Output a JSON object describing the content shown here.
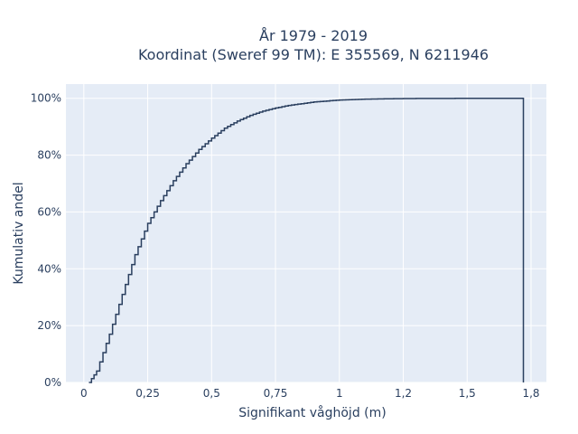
{
  "chart_data": {
    "type": "line",
    "title_lines": [
      "År 1979 - 2019",
      "Koordinat (Sweref 99 TM): E 355569, N 6211946"
    ],
    "xlabel": "Signifikant våghöjd (m)",
    "ylabel": "Kumulativ andel",
    "xlim": [
      -0.07,
      1.81
    ],
    "ylim": [
      0,
      1.05
    ],
    "x_ticks": [
      {
        "value": 0,
        "label": "0"
      },
      {
        "value": 0.25,
        "label": "0,25"
      },
      {
        "value": 0.5,
        "label": "0,5"
      },
      {
        "value": 0.75,
        "label": "0,75"
      },
      {
        "value": 1,
        "label": "1"
      },
      {
        "value": 1.25,
        "label": "1,2"
      },
      {
        "value": 1.5,
        "label": "1,5"
      },
      {
        "value": 1.75,
        "label": "1,8"
      }
    ],
    "y_ticks": [
      {
        "value": 0,
        "label": "0%"
      },
      {
        "value": 0.2,
        "label": "20%"
      },
      {
        "value": 0.4,
        "label": "40%"
      },
      {
        "value": 0.6,
        "label": "60%"
      },
      {
        "value": 0.8,
        "label": "80%"
      },
      {
        "value": 1.0,
        "label": "100%"
      }
    ],
    "grid": true,
    "line_shape": "step",
    "series": [
      {
        "color": "#2a3f5f",
        "x": [
          0.02,
          0.05,
          0.1,
          0.15,
          0.2,
          0.25,
          0.3,
          0.35,
          0.4,
          0.45,
          0.5,
          0.55,
          0.6,
          0.65,
          0.7,
          0.75,
          0.8,
          0.9,
          1.0,
          1.1,
          1.2,
          1.3,
          1.5,
          1.7,
          1.72,
          1.72
        ],
        "y": [
          0.0,
          0.04,
          0.17,
          0.31,
          0.45,
          0.56,
          0.64,
          0.71,
          0.77,
          0.82,
          0.86,
          0.895,
          0.92,
          0.94,
          0.955,
          0.966,
          0.975,
          0.987,
          0.994,
          0.997,
          0.9985,
          0.9993,
          0.9998,
          1.0,
          1.0,
          0.0
        ]
      }
    ]
  },
  "colors": {
    "plot_background": "#e5ecf6",
    "grid": "#ffffff",
    "text": "#2a3f5f",
    "line": "#2a3f5f"
  }
}
